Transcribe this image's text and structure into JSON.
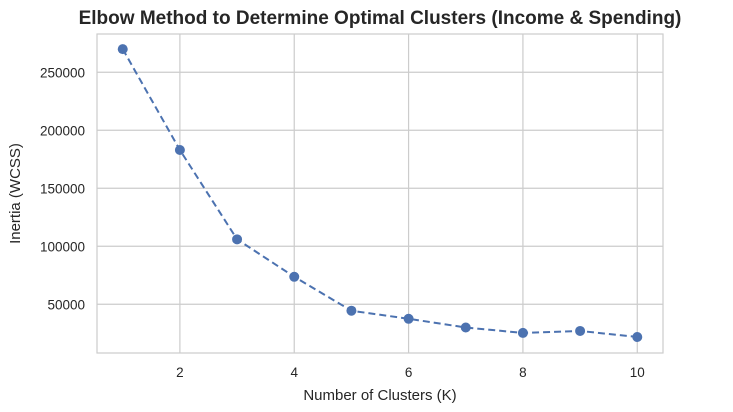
{
  "chart_data": {
    "type": "line",
    "title": "Elbow Method to Determine Optimal Clusters (Income & Spending)",
    "xlabel": "Number of Clusters (K)",
    "ylabel": "Inertia (WCSS)",
    "x": [
      1,
      2,
      3,
      4,
      5,
      6,
      7,
      8,
      9,
      10
    ],
    "series": [
      {
        "values": [
          269981,
          183000,
          106000,
          73700,
          44450,
          37500,
          30000,
          25300,
          27000,
          21800
        ],
        "color": "#4c72b0",
        "line_style": "dashed",
        "marker": "circle"
      }
    ],
    "xticks": [
      2,
      4,
      6,
      8,
      10
    ],
    "yticks": [
      50000,
      100000,
      150000,
      200000,
      250000
    ],
    "xlim": [
      0.55,
      10.45
    ],
    "ylim": [
      8000,
      283000
    ],
    "grid": true,
    "legend": "none"
  }
}
